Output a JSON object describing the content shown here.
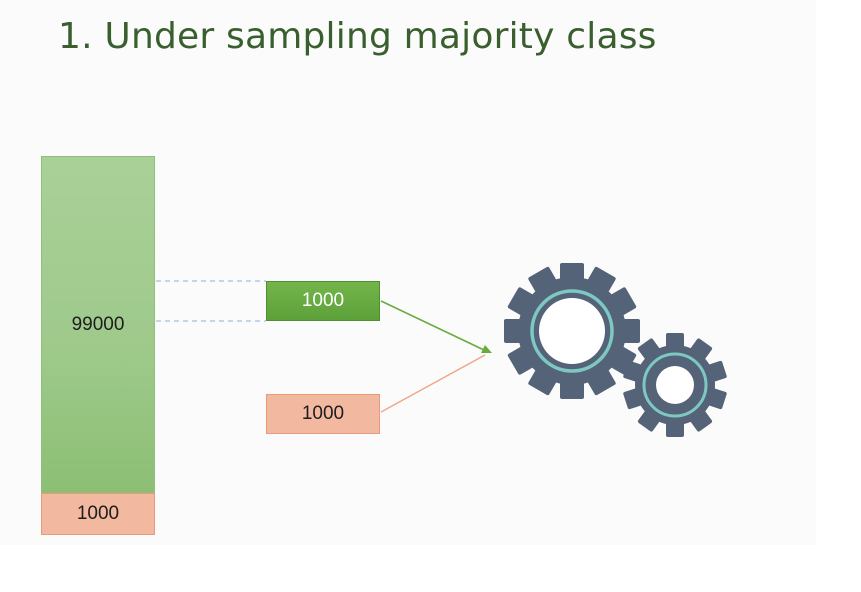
{
  "title": "1. Under sampling majority class",
  "majority_bar": {
    "label": "99000",
    "color": "#a6ce93"
  },
  "minority_bar": {
    "label": "1000",
    "color": "#f3b9a0"
  },
  "sampled_majority": {
    "label": "1000",
    "color": "#65aa41"
  },
  "sampled_minority": {
    "label": "1000",
    "color": "#f3b9a0"
  },
  "model": {
    "icon": "gears-icon",
    "gear_color": "#546378",
    "ring_color": "#7ec8c3"
  },
  "arrow_colors": {
    "green": "#6aaa3f",
    "orange": "#f0a582"
  }
}
